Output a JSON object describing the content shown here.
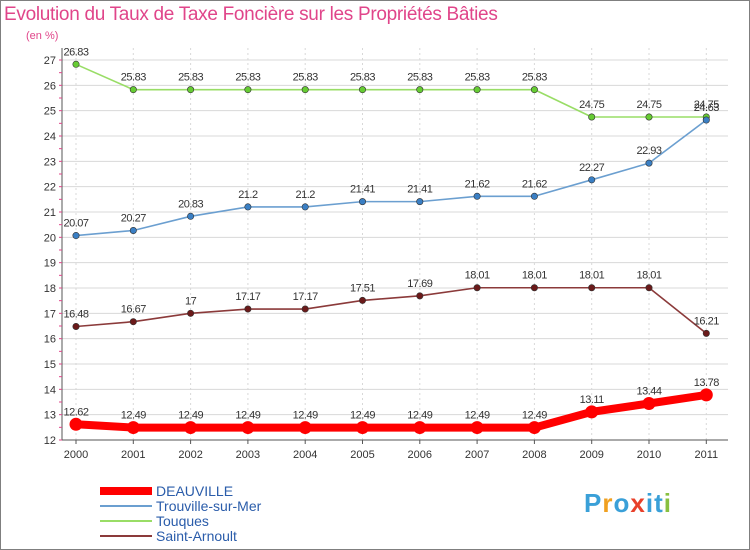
{
  "title": "Evolution du Taux de Taxe Foncière sur les Propriétés Bâties",
  "unit_label": "(en %)",
  "logo": {
    "text": "Proxiti",
    "colors": [
      "#3aa0d8",
      "#f0a020",
      "#3aa0d8",
      "#e8402a",
      "#3aa0d8",
      "#3aa0d8",
      "#88c040"
    ]
  },
  "chart_data": {
    "type": "line",
    "title": "Evolution du Taux de Taxe Foncière sur les Propriétés Bâties",
    "ylabel": "(en %)",
    "xlabel": "",
    "ylim": [
      12,
      27
    ],
    "yticks": [
      12,
      13,
      14,
      15,
      16,
      17,
      18,
      19,
      20,
      21,
      22,
      23,
      24,
      25,
      26,
      27
    ],
    "grid": true,
    "legend_position": "bottom-left",
    "categories": [
      "2000",
      "2001",
      "2002",
      "2003",
      "2004",
      "2005",
      "2006",
      "2007",
      "2008",
      "2009",
      "2010",
      "2011"
    ],
    "series": [
      {
        "name": "DEAUVILLE",
        "color": "#ff0000",
        "marker": "#ff0000",
        "thick": true,
        "values": [
          12.62,
          12.49,
          12.49,
          12.49,
          12.49,
          12.49,
          12.49,
          12.49,
          12.49,
          13.11,
          13.44,
          13.78
        ],
        "labels": [
          "12.62",
          "12.49",
          "12.49",
          "12.49",
          "12.49",
          "12.49",
          "12.49",
          "12.49",
          "12.49",
          "13.11",
          "13.44",
          "13.78"
        ]
      },
      {
        "name": "Trouville-sur-Mer",
        "color": "#6b9fd0",
        "marker": "#3a7fc4",
        "thick": false,
        "values": [
          20.07,
          20.27,
          20.83,
          21.2,
          21.2,
          21.41,
          21.41,
          21.62,
          21.62,
          22.27,
          22.93,
          24.63
        ],
        "labels": [
          "20.07",
          "20.27",
          "20.83",
          "21.2",
          "21.2",
          "21.41",
          "21.41",
          "21.62",
          "21.62",
          "22.27",
          "22.93",
          "24.63"
        ]
      },
      {
        "name": "Touques",
        "color": "#99dd66",
        "marker": "#66cc33",
        "thick": false,
        "values": [
          26.83,
          25.83,
          25.83,
          25.83,
          25.83,
          25.83,
          25.83,
          25.83,
          25.83,
          24.75,
          24.75,
          24.75
        ],
        "labels": [
          "26.83",
          "25.83",
          "25.83",
          "25.83",
          "25.83",
          "25.83",
          "25.83",
          "25.83",
          "25.83",
          "24.75",
          "24.75",
          "24.75"
        ]
      },
      {
        "name": "Saint-Arnoult",
        "color": "#8b3a3a",
        "marker": "#6b1a1a",
        "thick": false,
        "values": [
          16.48,
          16.67,
          17,
          17.17,
          17.17,
          17.51,
          17.69,
          18.01,
          18.01,
          18.01,
          18.01,
          16.21
        ],
        "labels": [
          "16.48",
          "16.67",
          "17",
          "17.17",
          "17.17",
          "17.51",
          "17.69",
          "18.01",
          "18.01",
          "18.01",
          "18.01",
          "16.21"
        ]
      }
    ]
  }
}
